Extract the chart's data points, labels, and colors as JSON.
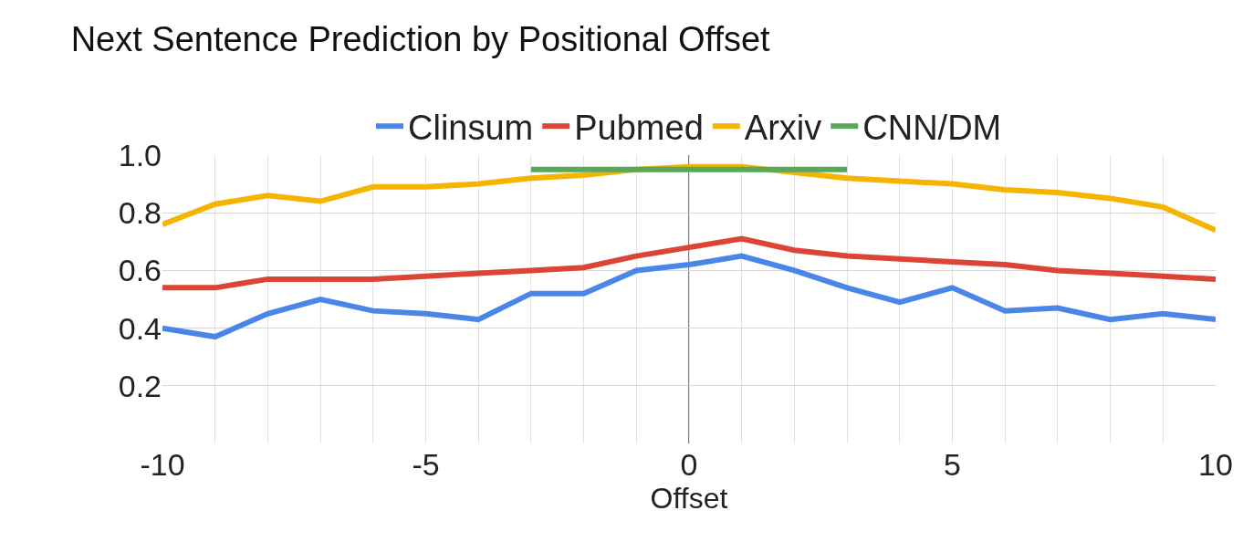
{
  "chart_data": {
    "type": "line",
    "title": "Next Sentence Prediction by Positional Offset",
    "xlabel": "Offset",
    "x": [
      -10,
      -9,
      -8,
      -7,
      -6,
      -5,
      -4,
      -3,
      -2,
      -1,
      0,
      1,
      2,
      3,
      4,
      5,
      6,
      7,
      8,
      9,
      10
    ],
    "series": [
      {
        "name": "Clinsum",
        "color": "#4a86e8",
        "values": [
          0.4,
          0.37,
          0.45,
          0.5,
          0.46,
          0.45,
          0.43,
          0.52,
          0.52,
          0.6,
          0.62,
          0.65,
          0.6,
          0.54,
          0.49,
          0.54,
          0.46,
          0.47,
          0.43,
          0.45,
          0.43
        ]
      },
      {
        "name": "Pubmed",
        "color": "#db4437",
        "values": [
          0.54,
          0.54,
          0.57,
          0.57,
          0.57,
          0.58,
          0.59,
          0.6,
          0.61,
          0.65,
          0.68,
          0.71,
          0.67,
          0.65,
          0.64,
          0.63,
          0.62,
          0.6,
          0.59,
          0.58,
          0.57
        ]
      },
      {
        "name": "Arxiv",
        "color": "#f4b400",
        "values": [
          0.76,
          0.83,
          0.86,
          0.84,
          0.89,
          0.89,
          0.9,
          0.92,
          0.93,
          0.95,
          0.96,
          0.96,
          0.94,
          0.92,
          0.91,
          0.9,
          0.88,
          0.87,
          0.85,
          0.82,
          0.74
        ]
      },
      {
        "name": "CNN/DM",
        "color": "#57a85a",
        "x": [
          -3,
          3
        ],
        "values": [
          0.95,
          0.95
        ]
      }
    ],
    "xlim": [
      -10,
      10
    ],
    "xticks": [
      -10,
      {
        "value": -9,
        "label": null
      },
      {
        "value": -8,
        "label": null
      },
      {
        "value": -7,
        "label": null
      },
      {
        "value": -6,
        "label": null
      },
      -5,
      {
        "value": -4,
        "label": null
      },
      {
        "value": -3,
        "label": null
      },
      {
        "value": -2,
        "label": null
      },
      {
        "value": -1,
        "label": null
      },
      0,
      {
        "value": 1,
        "label": null
      },
      {
        "value": 2,
        "label": null
      },
      {
        "value": 3,
        "label": null
      },
      {
        "value": 4,
        "label": null
      },
      5,
      {
        "value": 6,
        "label": null
      },
      {
        "value": 7,
        "label": null
      },
      {
        "value": 8,
        "label": null
      },
      {
        "value": 9,
        "label": null
      },
      10
    ],
    "ylim": [
      0,
      1
    ],
    "yticks": [
      0.2,
      0.4,
      0.6,
      0.8,
      {
        "value": 1,
        "label": "1.0"
      }
    ],
    "ref_lines": [
      {
        "axis": "x",
        "value": 0,
        "color": "#555555"
      }
    ],
    "grid": true,
    "legend": "top",
    "line_style": "solid",
    "marker": "none"
  }
}
